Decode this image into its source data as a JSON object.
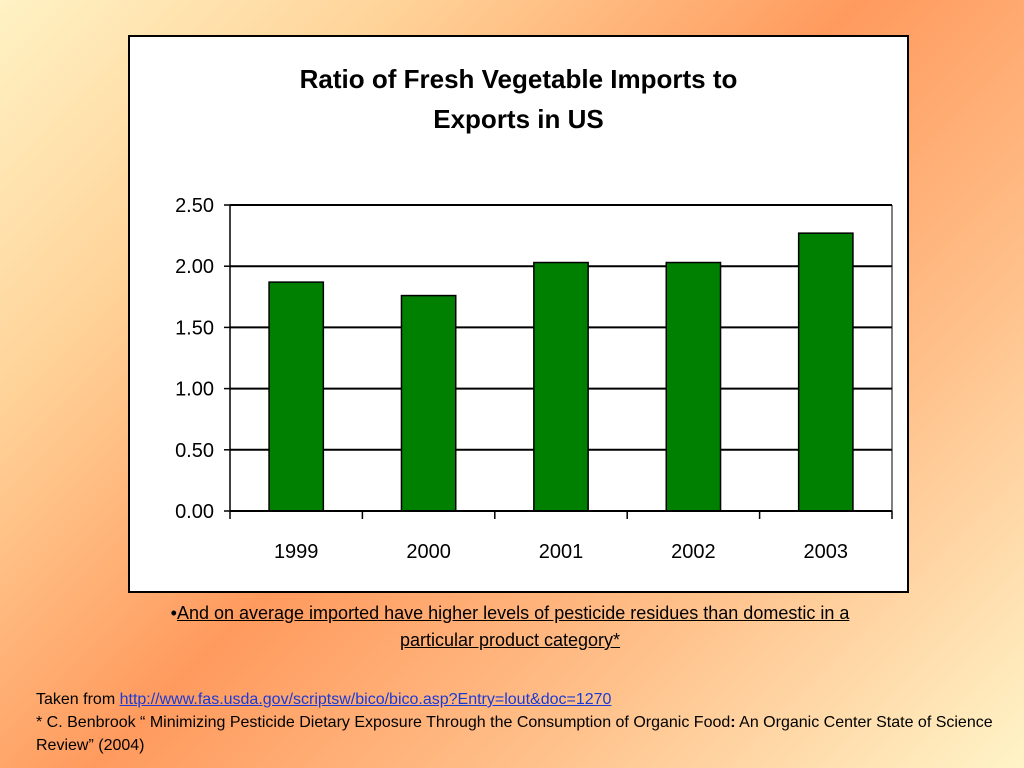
{
  "chart_data": {
    "type": "bar",
    "title": "Ratio of Fresh Vegetable Imports to Exports in US",
    "title_lines": [
      "Ratio of Fresh Vegetable Imports to",
      "Exports in US"
    ],
    "categories": [
      "1999",
      "2000",
      "2001",
      "2002",
      "2003"
    ],
    "values": [
      1.87,
      1.76,
      2.03,
      2.03,
      2.27
    ],
    "ylim": [
      0,
      2.5
    ],
    "yticks": [
      "0.00",
      "0.50",
      "1.00",
      "1.50",
      "2.00",
      "2.50"
    ],
    "xlabel": "",
    "ylabel": "",
    "grid": true,
    "legend": "none",
    "bar_color": "#008000"
  },
  "bullet": {
    "marker": "•",
    "line1": "And on average imported have higher levels of pesticide residues than domestic in a ",
    "line2": "particular product category*"
  },
  "footer": {
    "taken_from_label": "Taken from ",
    "source_url": "http://www.fas.usda.gov/scriptsw/bico/bico.asp?Entry=lout&doc=1270",
    "citation_part1": "* C. Benbrook “ Minimizing Pesticide Dietary Exposure Through the Consumption of Organic Food",
    "citation_colon": ":",
    "citation_part2": " An Organic Center State of Science Review” (2004)"
  }
}
